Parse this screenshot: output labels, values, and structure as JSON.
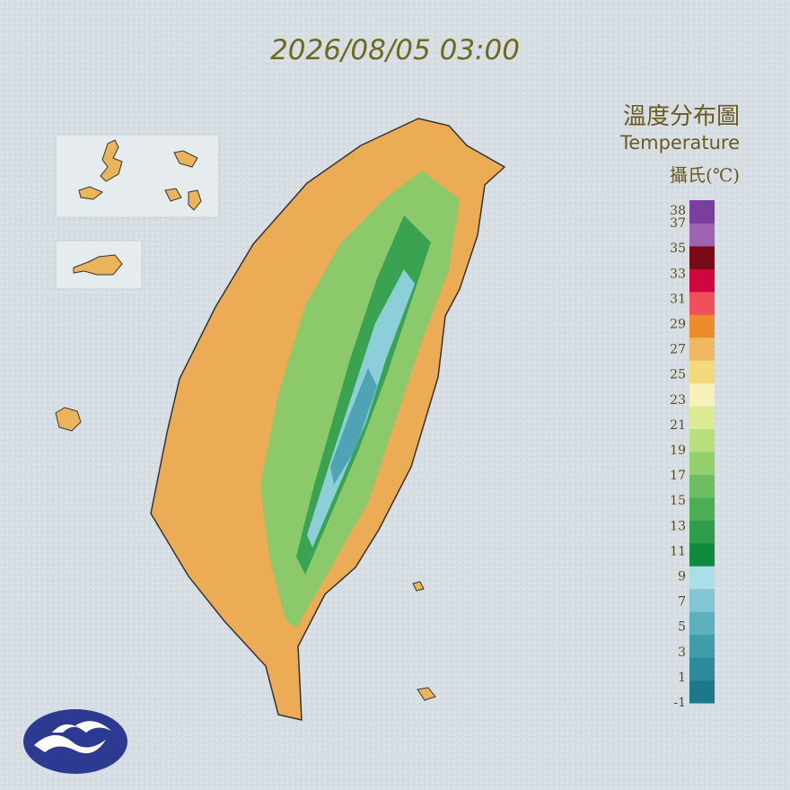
{
  "header": {
    "timestamp": "2026/08/05 03:00"
  },
  "legend": {
    "title": "溫度分布圖",
    "subtitle": "Temperature",
    "unit": "攝氏(℃)",
    "ticks": [
      38,
      37,
      35,
      33,
      31,
      29,
      27,
      25,
      23,
      21,
      19,
      17,
      15,
      13,
      11,
      9,
      7,
      5,
      3,
      1,
      -1
    ],
    "colors": [
      "#1c7a88",
      "#2b8b99",
      "#3f9daa",
      "#5db1bd",
      "#81c6d1",
      "#a9dfe7",
      "#0e8b3f",
      "#2f9e4c",
      "#4bae57",
      "#6ebf61",
      "#93cf6d",
      "#b9df7c",
      "#dcec95",
      "#f6f1b8",
      "#f3d97c",
      "#f0b961",
      "#ec8c2a",
      "#f0505c",
      "#d0063e",
      "#7a0b14",
      "#9f63b3",
      "#7a3f9d"
    ]
  }
}
